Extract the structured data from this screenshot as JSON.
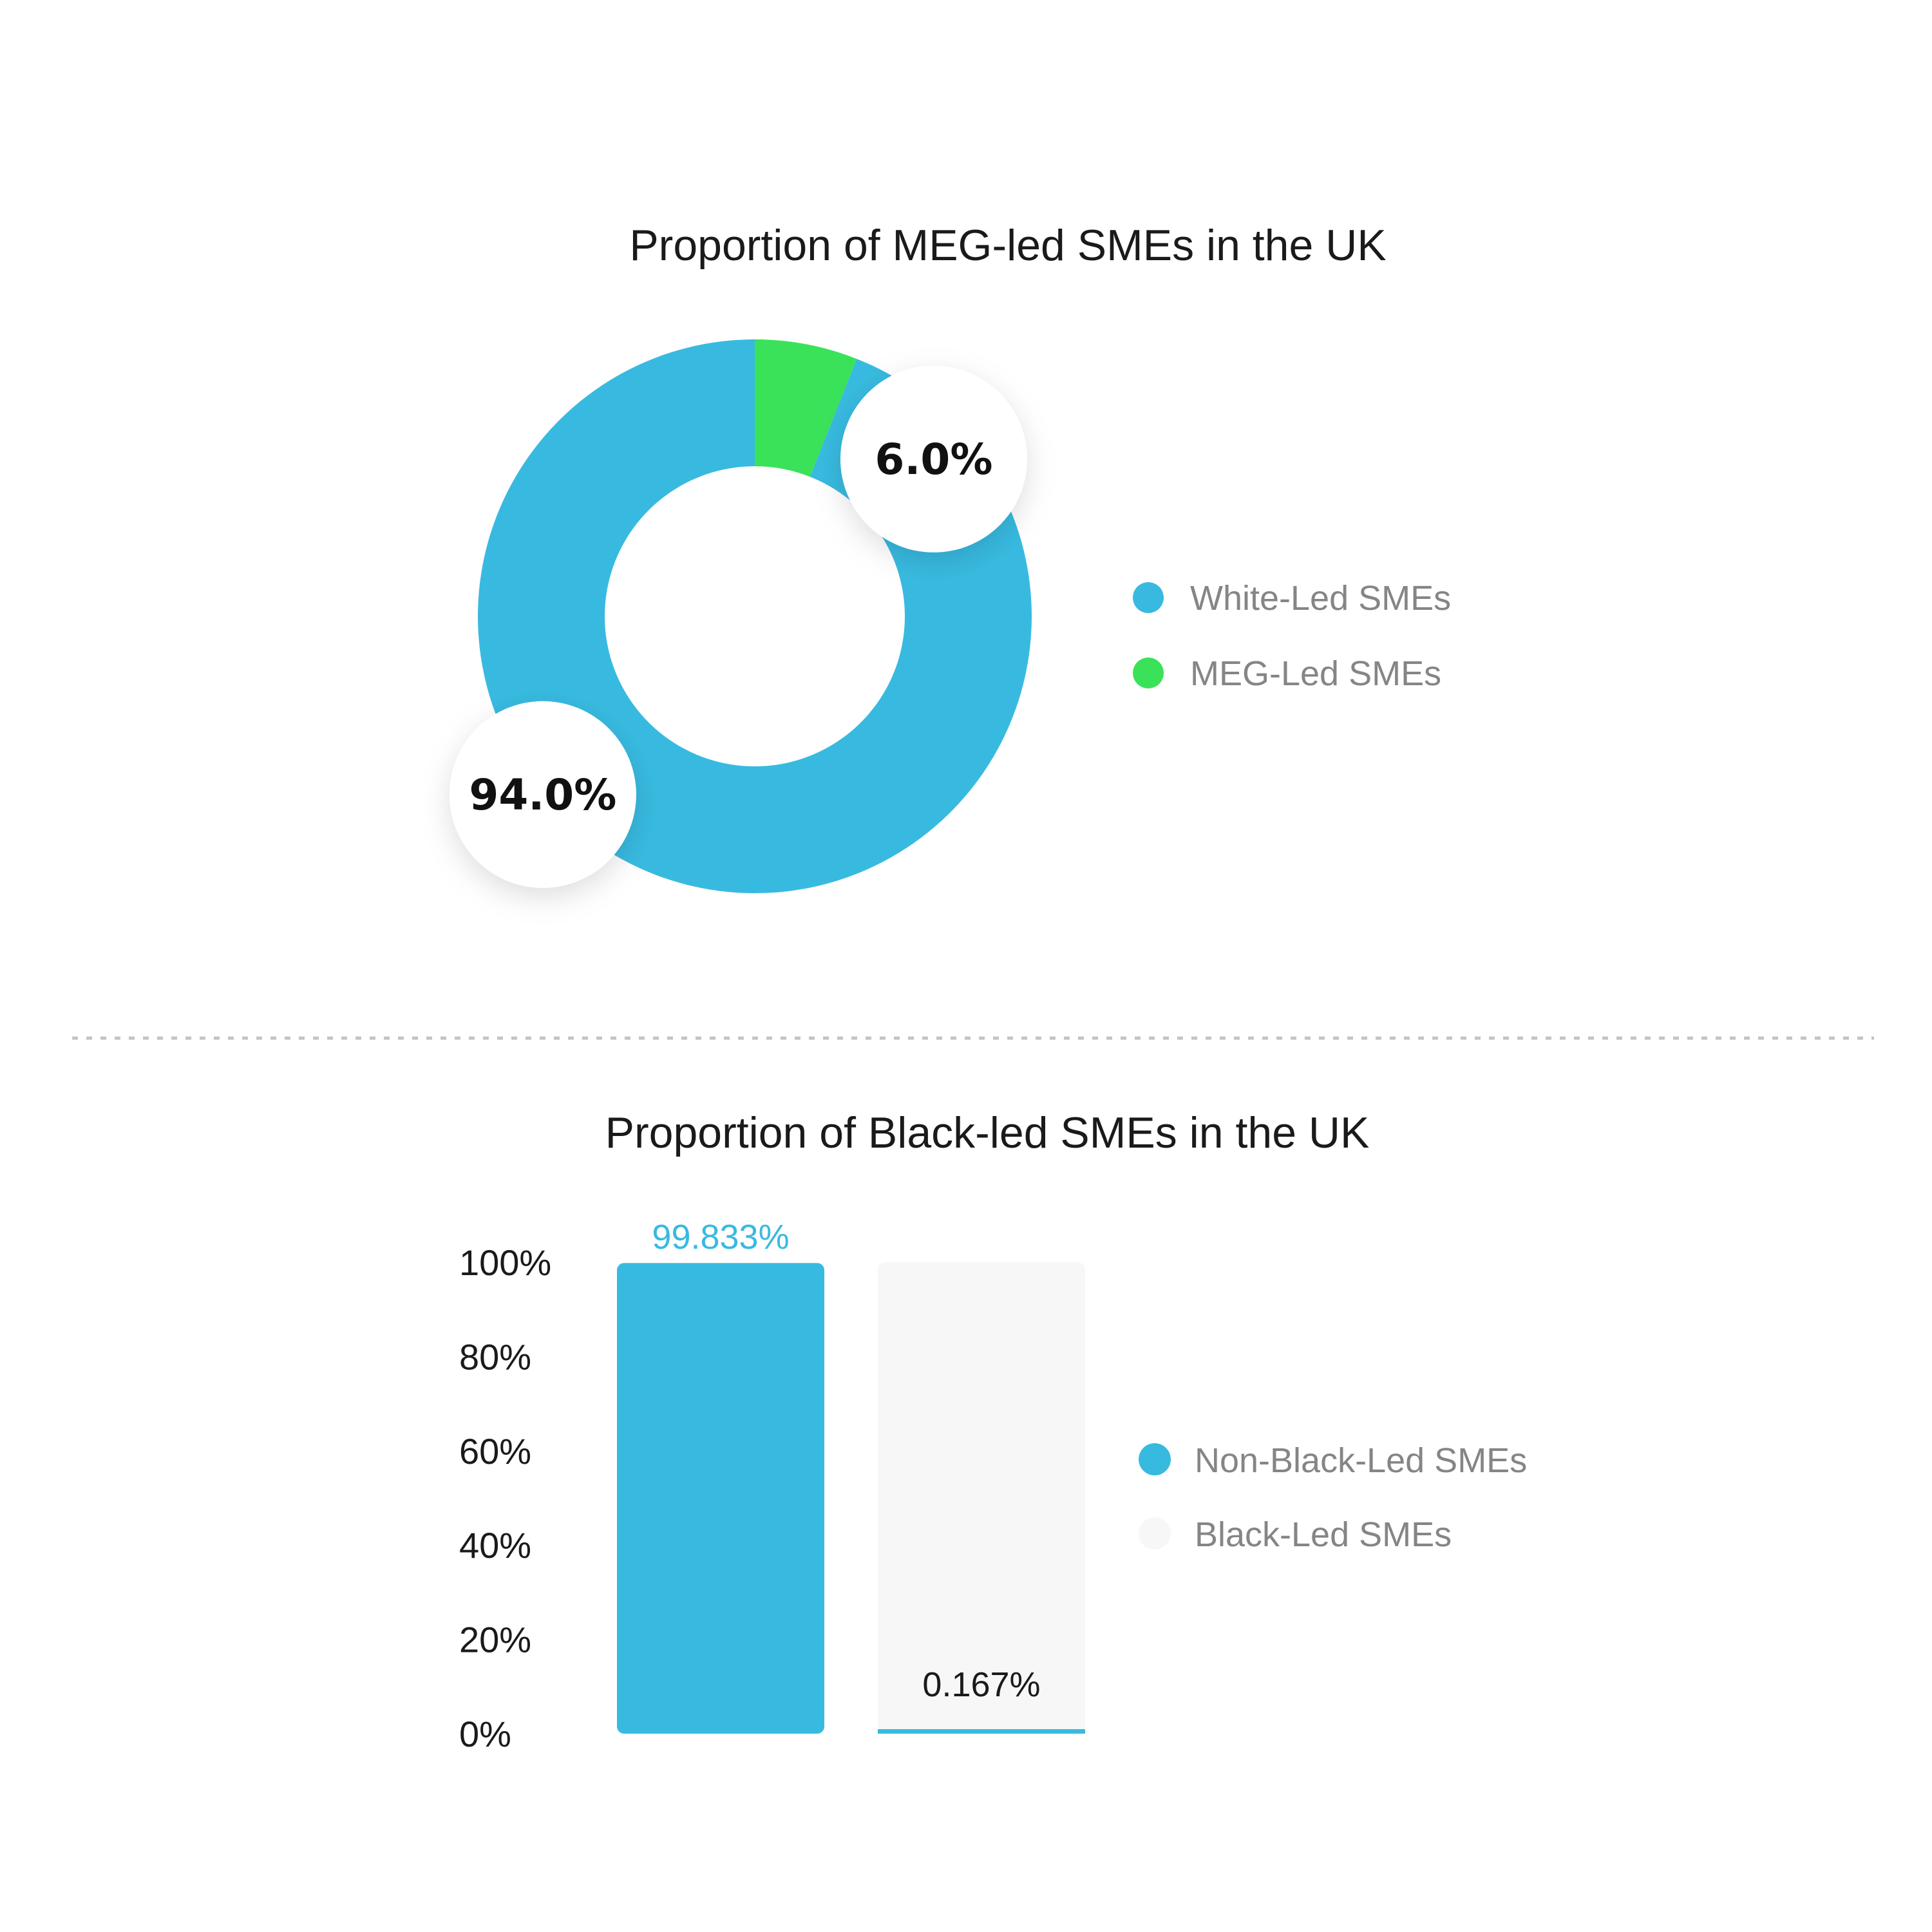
{
  "chart_data": [
    {
      "type": "pie",
      "title": "Proportion of MEG-led SMEs in the UK",
      "donut": true,
      "slices": [
        {
          "name": "White-Led SMEs",
          "value": 94.0,
          "label": "94.0%",
          "color": "#38BAE0"
        },
        {
          "name": "MEG-Led SMEs",
          "value": 6.0,
          "label": "6.0%",
          "color": "#3AE25A"
        }
      ],
      "legend_position": "right"
    },
    {
      "type": "bar",
      "title": "Proportion of Black-led SMEs in the UK",
      "categories": [
        "Non-Black-Led SMEs",
        "Black-Led SMEs"
      ],
      "values": [
        99.833,
        0.167
      ],
      "value_labels": [
        "99.833%",
        "0.167%"
      ],
      "colors": [
        "#38BAE0",
        "#F7F7F7"
      ],
      "value_label_colors": [
        "#38BAE0",
        "#1a1a1a"
      ],
      "small_bar_accent": "#38BAE0",
      "ylim": [
        0,
        100
      ],
      "yticks": [
        "100%",
        "80%",
        "60%",
        "40%",
        "20%",
        "0%"
      ],
      "ytick_values": [
        100,
        80,
        60,
        40,
        20,
        0
      ],
      "legend": [
        "Non-Black-Led SMEs",
        "Black-Led SMEs"
      ],
      "legend_position": "right",
      "grid": false
    }
  ]
}
